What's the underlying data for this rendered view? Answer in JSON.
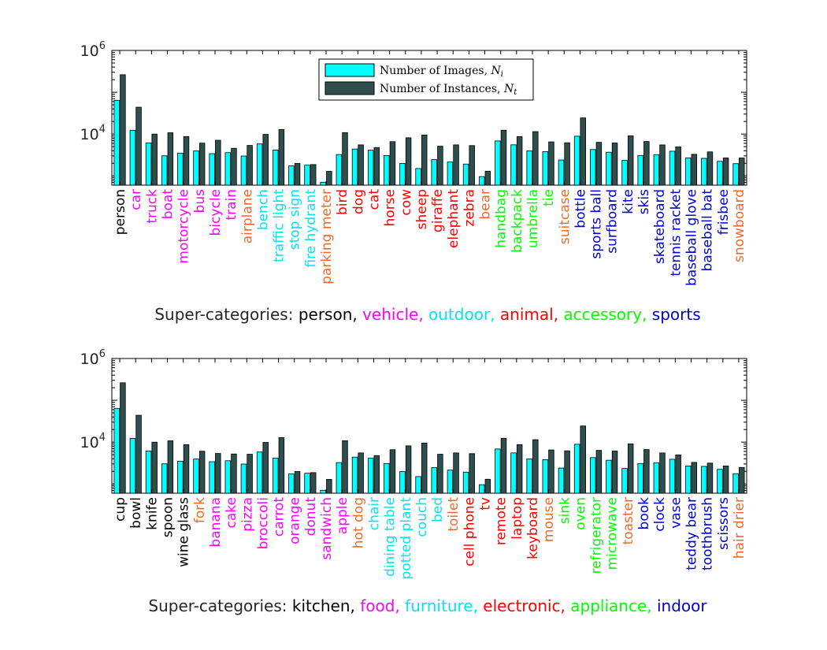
{
  "colors": {
    "images_bar": "#00ffff",
    "instances_bar": "#2f4f4f",
    "person": "#000000",
    "vehicle": "#ff00ff",
    "outdoor": "#00e5ee",
    "animal": "#ff0000",
    "accessory": "#00ff00",
    "sports": "#0000cd",
    "kitchen": "#000000",
    "food": "#ff00ff",
    "furniture": "#00e5ee",
    "electronic": "#ff0000",
    "appliance": "#00ff00",
    "indoor": "#0000cd",
    "orange_label": "#ee6a2c",
    "axis_text": "#262626"
  },
  "legend": {
    "images": {
      "text": "Number of Images, ",
      "var": "N",
      "sub": "i"
    },
    "instances": {
      "text": "Number of Instances, ",
      "var": "N",
      "sub": "t"
    }
  },
  "chart_data": [
    {
      "type": "bar",
      "scale": "log",
      "ylim": [
        600,
        1000000
      ],
      "yticks": [
        {
          "base": "10",
          "exp": "4",
          "value": 10000
        },
        {
          "base": "10",
          "exp": "6",
          "value": 1000000
        }
      ],
      "series": [
        {
          "name": "Number of Images, N_i",
          "values": [
            64115,
            12251,
            6127,
            3025,
            3502,
            3952,
            3401,
            3588,
            2986,
            5805,
            4139,
            1734,
            1803,
            705,
            3237,
            4385,
            4114,
            3069,
            1986,
            1500,
            2453,
            2143,
            1916,
            960,
            6841,
            5528,
            3968,
            3810,
            2402,
            8880,
            4262,
            3682,
            2342,
            3082,
            3221,
            3886,
            2689,
            2629,
            2232,
            1960
          ]
        },
        {
          "name": "Number of Instances, N_t",
          "values": [
            262465,
            43867,
            9973,
            10759,
            8725,
            6069,
            7113,
            4571,
            5350,
            9838,
            12884,
            1983,
            1865,
            1285,
            10806,
            5508,
            4768,
            6587,
            8147,
            9509,
            5131,
            5513,
            5303,
            1294,
            12354,
            8720,
            11431,
            6496,
            6192,
            24342,
            6347,
            6126,
            9076,
            6646,
            5499,
            4950,
            3276,
            3751,
            2685,
            2682
          ]
        }
      ],
      "categories": [
        "person",
        "car",
        "truck",
        "boat",
        "motorcycle",
        "bus",
        "bicycle",
        "train",
        "airplane",
        "bench",
        "traffic light",
        "stop sign",
        "fire hydrant",
        "parking meter",
        "bird",
        "dog",
        "cat",
        "horse",
        "cow",
        "sheep",
        "giraffe",
        "elephant",
        "zebra",
        "bear",
        "handbag",
        "backpack",
        "umbrella",
        "tie",
        "suitcase",
        "bottle",
        "sports ball",
        "surfboard",
        "kite",
        "skis",
        "skateboard",
        "tennis racket",
        "baseball glove",
        "baseball bat",
        "frisbee",
        "snowboard"
      ],
      "category_colors": [
        "person",
        "vehicle",
        "vehicle",
        "vehicle",
        "vehicle",
        "vehicle",
        "vehicle",
        "vehicle",
        "orange_label",
        "outdoor",
        "outdoor",
        "outdoor",
        "outdoor",
        "orange_label",
        "animal",
        "animal",
        "animal",
        "animal",
        "animal",
        "animal",
        "animal",
        "animal",
        "animal",
        "orange_label",
        "accessory",
        "accessory",
        "accessory",
        "accessory",
        "orange_label",
        "sports",
        "sports",
        "sports",
        "sports",
        "sports",
        "sports",
        "sports",
        "sports",
        "sports",
        "sports",
        "orange_label"
      ],
      "supercategory_caption": {
        "prefix": "Super-categories: ",
        "items": [
          {
            "text": "person,",
            "color": "person"
          },
          {
            "text": " vehicle,",
            "color": "vehicle"
          },
          {
            "text": " outdoor,",
            "color": "outdoor"
          },
          {
            "text": " animal,",
            "color": "animal"
          },
          {
            "text": " accessory,",
            "color": "accessory"
          },
          {
            "text": " sports",
            "color": "sports"
          }
        ]
      }
    },
    {
      "type": "bar",
      "scale": "log",
      "ylim": [
        600,
        1000000
      ],
      "yticks": [
        {
          "base": "10",
          "exp": "4",
          "value": 10000
        },
        {
          "base": "10",
          "exp": "6",
          "value": 1000000
        }
      ],
      "series": [
        {
          "name": "Number of Images, N_i",
          "values": [
            64115,
            12251,
            6127,
            3025,
            3502,
            3952,
            3401,
            3588,
            2986,
            5805,
            4139,
            1734,
            1803,
            705,
            3237,
            4385,
            4114,
            3069,
            1986,
            1500,
            2453,
            2143,
            1916,
            960,
            6841,
            5528,
            3968,
            3810,
            2402,
            8880,
            4262,
            3682,
            2342,
            3082,
            3221,
            3886,
            2689,
            2629,
            2232,
            1760
          ]
        },
        {
          "name": "Number of Instances, N_t",
          "values": [
            262465,
            43867,
            9973,
            10759,
            8725,
            6069,
            5350,
            5200,
            5130,
            9838,
            12884,
            1983,
            1865,
            1285,
            10806,
            5508,
            4768,
            6587,
            8147,
            9509,
            5131,
            5513,
            5303,
            1294,
            12354,
            8720,
            11431,
            6496,
            6192,
            24342,
            6347,
            6126,
            9076,
            6646,
            5499,
            4950,
            3276,
            3151,
            2685,
            2482
          ]
        }
      ],
      "categories": [
        "cup",
        "bowl",
        "knife",
        "spoon",
        "wine glass",
        "fork",
        "banana",
        "cake",
        "pizza",
        "broccoli",
        "carrot",
        "orange",
        "donut",
        "sandwich",
        "apple",
        "hot dog",
        "chair",
        "dining table",
        "potted plant",
        "couch",
        "bed",
        "toilet",
        "cell phone",
        "tv",
        "remote",
        "laptop",
        "keyboard",
        "mouse",
        "sink",
        "oven",
        "refrigerator",
        "microwave",
        "toaster",
        "book",
        "clock",
        "vase",
        "teddy bear",
        "toothbrush",
        "scissors",
        "hair drier"
      ],
      "category_colors": [
        "kitchen",
        "kitchen",
        "kitchen",
        "kitchen",
        "kitchen",
        "orange_label",
        "food",
        "food",
        "food",
        "food",
        "food",
        "food",
        "food",
        "food",
        "food",
        "orange_label",
        "furniture",
        "furniture",
        "furniture",
        "furniture",
        "furniture",
        "orange_label",
        "electronic",
        "electronic",
        "electronic",
        "electronic",
        "electronic",
        "orange_label",
        "appliance",
        "appliance",
        "appliance",
        "appliance",
        "orange_label",
        "indoor",
        "indoor",
        "indoor",
        "indoor",
        "indoor",
        "indoor",
        "orange_label"
      ],
      "supercategory_caption": {
        "prefix": "Super-categories: ",
        "items": [
          {
            "text": "kitchen,",
            "color": "kitchen"
          },
          {
            "text": " food,",
            "color": "food"
          },
          {
            "text": " furniture,",
            "color": "furniture"
          },
          {
            "text": " electronic,",
            "color": "electronic"
          },
          {
            "text": " appliance,",
            "color": "appliance"
          },
          {
            "text": " indoor",
            "color": "indoor"
          }
        ]
      }
    }
  ]
}
